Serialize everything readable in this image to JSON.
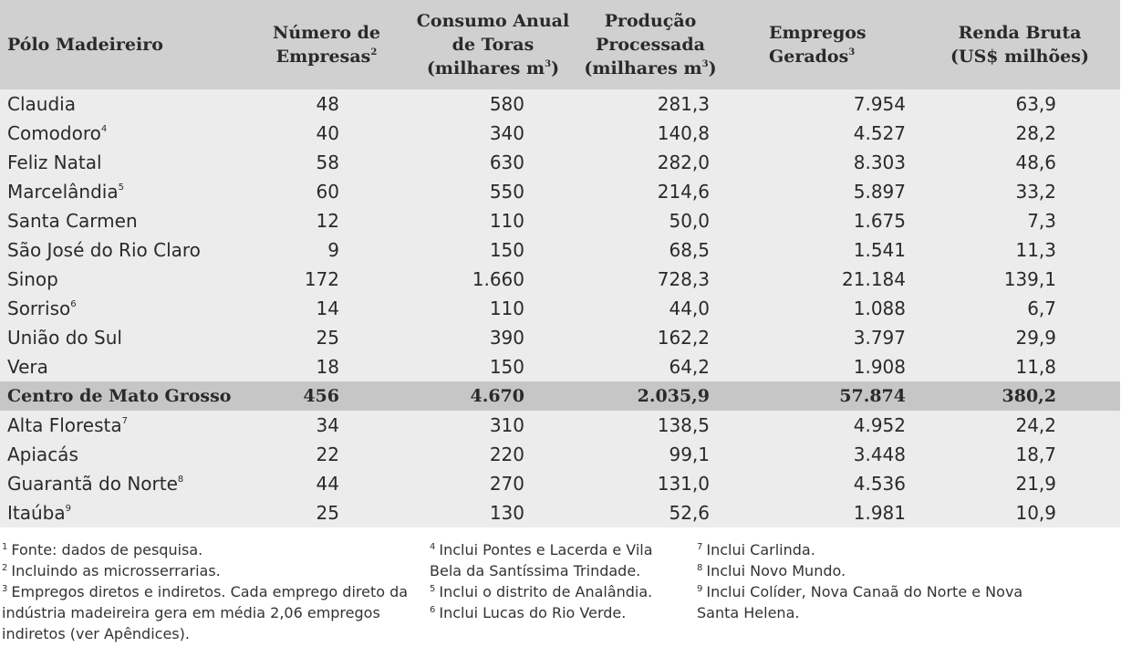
{
  "header": {
    "col0": "Pólo Madeireiro",
    "col1_line1": "Número de",
    "col1_line2": "Empresas",
    "col1_sup": "2",
    "col2_line1": "Consumo Anual",
    "col2_line2": "de Toras",
    "col2_line3_pre": "(milhares m",
    "col2_line3_sup": "3",
    "col2_line3_post": ")",
    "col3_line1": "Produção",
    "col3_line2": "Processada",
    "col3_line3_pre": "(milhares m",
    "col3_line3_sup": "3",
    "col3_line3_post": ")",
    "col4": "Empregos Gerados",
    "col4_sup": "3",
    "col5_line1": "Renda Bruta",
    "col5_line2": "(US$ milhões)"
  },
  "rows": [
    {
      "name": "Claudia",
      "sup": "",
      "empresas": "48",
      "consumo": "580",
      "producao": "281,3",
      "empregos": "7.954",
      "renda": "63,9"
    },
    {
      "name": "Comodoro",
      "sup": "4",
      "empresas": "40",
      "consumo": "340",
      "producao": "140,8",
      "empregos": "4.527",
      "renda": "28,2"
    },
    {
      "name": "Feliz Natal",
      "sup": "",
      "empresas": "58",
      "consumo": "630",
      "producao": "282,0",
      "empregos": "8.303",
      "renda": "48,6"
    },
    {
      "name": "Marcelândia",
      "sup": "5",
      "empresas": "60",
      "consumo": "550",
      "producao": "214,6",
      "empregos": "5.897",
      "renda": "33,2"
    },
    {
      "name": "Santa Carmen",
      "sup": "",
      "empresas": "12",
      "consumo": "110",
      "producao": "50,0",
      "empregos": "1.675",
      "renda": "7,3"
    },
    {
      "name": "São José do Rio Claro",
      "sup": "",
      "empresas": "9",
      "consumo": "150",
      "producao": "68,5",
      "empregos": "1.541",
      "renda": "11,3"
    },
    {
      "name": "Sinop",
      "sup": "",
      "empresas": "172",
      "consumo": "1.660",
      "producao": "728,3",
      "empregos": "21.184",
      "renda": "139,1"
    },
    {
      "name": "Sorriso",
      "sup": "6",
      "empresas": "14",
      "consumo": "110",
      "producao": "44,0",
      "empregos": "1.088",
      "renda": "6,7"
    },
    {
      "name": "União do Sul",
      "sup": "",
      "empresas": "25",
      "consumo": "390",
      "producao": "162,2",
      "empregos": "3.797",
      "renda": "29,9"
    },
    {
      "name": "Vera",
      "sup": "",
      "empresas": "18",
      "consumo": "150",
      "producao": "64,2",
      "empregos": "1.908",
      "renda": "11,8"
    },
    {
      "name": "Centro de Mato Grosso",
      "sup": "",
      "empresas": "456",
      "consumo": "4.670",
      "producao": "2.035,9",
      "empregos": "57.874",
      "renda": "380,2",
      "region": true
    },
    {
      "name": "Alta Floresta",
      "sup": "7",
      "empresas": "34",
      "consumo": "310",
      "producao": "138,5",
      "empregos": "4.952",
      "renda": "24,2"
    },
    {
      "name": "Apiacás",
      "sup": "",
      "empresas": "22",
      "consumo": "220",
      "producao": "99,1",
      "empregos": "3.448",
      "renda": "18,7"
    },
    {
      "name": "Guarantã do Norte",
      "sup": "8",
      "empresas": "44",
      "consumo": "270",
      "producao": "131,0",
      "empregos": "4.536",
      "renda": "21,9"
    },
    {
      "name": "Itaúba",
      "sup": "9",
      "empresas": "25",
      "consumo": "130",
      "producao": "52,6",
      "empregos": "1.981",
      "renda": "10,9"
    }
  ],
  "footnotes": {
    "col1": [
      {
        "sup": "1",
        "text": "Fonte: dados de pesquisa."
      },
      {
        "sup": "2",
        "text": "Incluindo as microsserrarias."
      },
      {
        "sup": "3",
        "text": "Empregos diretos e indiretos. Cada emprego direto da indústria madeireira gera em média 2,06 empregos indiretos (ver Apêndices)."
      }
    ],
    "col2": [
      {
        "sup": "4",
        "text": "Inclui Pontes e Lacerda e Vila Bela da Santíssima Trindade."
      },
      {
        "sup": "5",
        "text": "Inclui o distrito de Analândia."
      },
      {
        "sup": "6",
        "text": "Inclui Lucas do Rio Verde."
      }
    ],
    "col3": [
      {
        "sup": "7",
        "text": "Inclui Carlinda."
      },
      {
        "sup": "8",
        "text": "Inclui Novo Mundo."
      },
      {
        "sup": "9",
        "text": "Inclui Colíder, Nova Canaã do Norte e Nova Santa Helena."
      }
    ]
  }
}
